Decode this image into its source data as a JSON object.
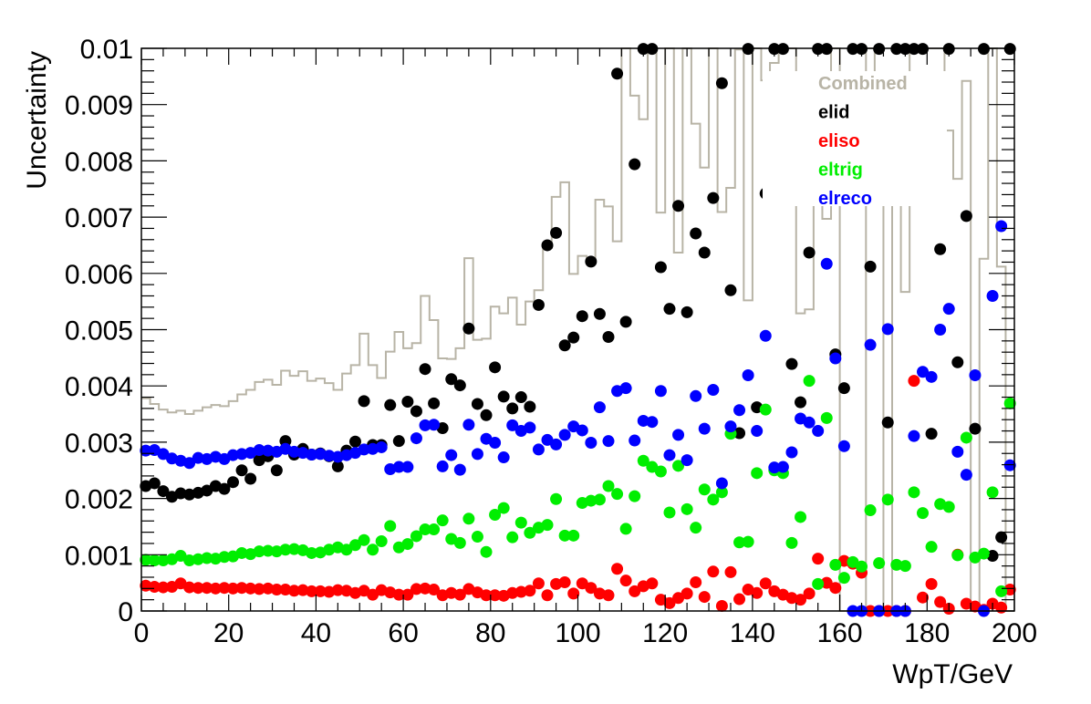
{
  "chart_data": {
    "type": "scatter",
    "xlabel": "WpT/GeV",
    "ylabel": "Uncertainty",
    "xlim": [
      0,
      200
    ],
    "ylim": [
      0,
      0.01
    ],
    "x_ticks": [
      "0",
      "20",
      "40",
      "60",
      "80",
      "100",
      "120",
      "140",
      "160",
      "180",
      "200"
    ],
    "y_ticks": [
      "0",
      "0.001",
      "0.002",
      "0.003",
      "0.004",
      "0.005",
      "0.006",
      "0.007",
      "0.008",
      "0.009",
      "0.01"
    ],
    "legend_position": "top-right",
    "x": [
      1,
      3,
      5,
      7,
      9,
      11,
      13,
      15,
      17,
      19,
      21,
      23,
      25,
      27,
      29,
      31,
      33,
      35,
      37,
      39,
      41,
      43,
      45,
      47,
      49,
      51,
      53,
      55,
      57,
      59,
      61,
      63,
      65,
      67,
      69,
      71,
      73,
      75,
      77,
      79,
      81,
      83,
      85,
      87,
      89,
      91,
      93,
      95,
      97,
      99,
      101,
      103,
      105,
      107,
      109,
      111,
      113,
      115,
      117,
      119,
      121,
      123,
      125,
      127,
      129,
      131,
      133,
      135,
      137,
      139,
      141,
      143,
      145,
      147,
      149,
      151,
      153,
      155,
      157,
      159,
      161,
      163,
      165,
      167,
      169,
      171,
      173,
      175,
      177,
      179,
      181,
      183,
      185,
      187,
      189,
      191,
      193,
      195,
      197,
      199
    ],
    "series": [
      {
        "name": "Combined",
        "color": "#b8b4a6",
        "style": "step",
        "values": [
          0.00378,
          0.00368,
          0.00358,
          0.00353,
          0.00356,
          0.0035,
          0.00356,
          0.00362,
          0.00366,
          0.00364,
          0.00373,
          0.00385,
          0.00393,
          0.00407,
          0.00411,
          0.00402,
          0.00427,
          0.00418,
          0.00426,
          0.00409,
          0.00413,
          0.00405,
          0.00393,
          0.00422,
          0.00437,
          0.00493,
          0.00437,
          0.00414,
          0.00461,
          0.00496,
          0.00467,
          0.00476,
          0.0056,
          0.00517,
          0.00449,
          0.00448,
          0.00467,
          0.00627,
          0.00482,
          0.00484,
          0.00541,
          0.00529,
          0.00557,
          0.00509,
          0.0055,
          0.0057,
          0.00645,
          0.00736,
          0.00762,
          0.00599,
          0.00631,
          0.00621,
          0.00731,
          0.00719,
          0.00657,
          0.01,
          0.00916,
          0.00874,
          0.01,
          0.00708,
          0.01,
          0.00637,
          0.01,
          0.00866,
          0.00788,
          0.01,
          0.00709,
          0.00752,
          0.00998,
          0.00552,
          0.01,
          0.00943,
          0.00974,
          0.00994,
          0.01,
          0.00529,
          0.00536,
          0.00767,
          0.00697,
          0.01,
          0.0,
          0.0,
          0.0,
          0.01,
          0.00729,
          0.0,
          0.00836,
          0.00567,
          0.01,
          0.01,
          0.01,
          0.01,
          0.00854,
          0.00768,
          0.00942,
          0.0,
          0.00626,
          0.01,
          0.00612,
          0.0
        ]
      },
      {
        "name": "elid",
        "color": "#000000",
        "style": "markers",
        "values": [
          0.00222,
          0.00227,
          0.00213,
          0.00203,
          0.00209,
          0.00207,
          0.0021,
          0.00214,
          0.00222,
          0.00217,
          0.00229,
          0.0025,
          0.00235,
          0.00268,
          0.00275,
          0.0025,
          0.00302,
          0.00278,
          0.00288,
          0.00278,
          0.0028,
          0.00275,
          0.00257,
          0.00285,
          0.00301,
          0.00373,
          0.00295,
          0.00295,
          0.00366,
          0.00302,
          0.00372,
          0.00355,
          0.0043,
          0.00369,
          0.00325,
          0.00412,
          0.00401,
          0.00502,
          0.00368,
          0.00348,
          0.00433,
          0.00381,
          0.0036,
          0.0038,
          0.00363,
          0.00544,
          0.0065,
          0.00672,
          0.00472,
          0.00486,
          0.00524,
          0.00621,
          0.00528,
          0.00487,
          0.00955,
          0.00514,
          0.00794,
          0.00999,
          0.00999,
          0.00611,
          0.00537,
          0.0072,
          0.00531,
          0.00671,
          0.00637,
          0.00734,
          0.00938,
          0.0057,
          0.00316,
          0.00999,
          0.00362,
          0.00742,
          0.00999,
          0.00999,
          0.00439,
          0.00371,
          0.00637,
          0.00999,
          0.00999,
          0.00456,
          0.00396,
          0.00999,
          0.00999,
          0.00612,
          0.00999,
          0.00335,
          0.00999,
          0.00999,
          0.00999,
          0.00999,
          0.00315,
          0.00643,
          0.00999,
          0.00442,
          0.00702,
          0.00324,
          0.00999,
          0.00098,
          0.00131,
          0.00999
        ]
      },
      {
        "name": "eliso",
        "color": "#ff0000",
        "style": "markers",
        "values": [
          0.00045,
          0.00043,
          0.00042,
          0.00043,
          0.00049,
          0.00042,
          0.00041,
          0.00041,
          0.0004,
          0.00041,
          0.0004,
          0.00041,
          0.0004,
          0.00039,
          0.0004,
          0.00038,
          0.00038,
          0.00036,
          0.00037,
          0.00035,
          0.00035,
          0.00034,
          0.00037,
          0.00036,
          0.00032,
          0.00036,
          0.00029,
          0.00037,
          0.00033,
          0.00029,
          0.00029,
          0.00039,
          0.0004,
          0.00038,
          0.00028,
          0.00032,
          0.00029,
          0.00039,
          0.00033,
          0.00028,
          0.00028,
          0.00027,
          0.00032,
          0.00034,
          0.00036,
          0.00049,
          0.00028,
          0.00048,
          0.00051,
          0.00031,
          0.00049,
          0.00041,
          0.00031,
          0.00028,
          0.00075,
          0.00054,
          0.00035,
          0.00044,
          0.00049,
          0.0002,
          0.00014,
          0.00023,
          0.00031,
          0.00051,
          0.00025,
          0.0007,
          9e-05,
          0.00069,
          0.00021,
          0.00038,
          0.00032,
          0.00049,
          0.00035,
          0.00029,
          0.00023,
          0.0002,
          0.00031,
          0.00093,
          0.0005,
          0.00041,
          0.00089,
          0.00084,
          0.00068,
          0.0,
          0.0,
          0.0,
          0.0,
          0.0,
          0.00409,
          0.00024,
          0.00048,
          0.00016,
          4e-05,
          0.001,
          0.00013,
          8e-05,
          2e-05,
          0.00013,
          6e-05,
          0.00038
        ]
      },
      {
        "name": "eltrig",
        "color": "#00ee00",
        "style": "markers",
        "values": [
          0.00091,
          0.0009,
          0.0009,
          0.00092,
          0.00098,
          0.0009,
          0.00092,
          0.00094,
          0.00093,
          0.00096,
          0.00097,
          0.00103,
          0.00101,
          0.00106,
          0.00107,
          0.00106,
          0.00109,
          0.0011,
          0.00108,
          0.00103,
          0.00104,
          0.00109,
          0.00113,
          0.00109,
          0.00117,
          0.00126,
          0.00109,
          0.00124,
          0.00151,
          0.00113,
          0.00119,
          0.00133,
          0.00145,
          0.00145,
          0.00161,
          0.00128,
          0.00121,
          0.00164,
          0.00132,
          0.00105,
          0.00171,
          0.00183,
          0.00131,
          0.00157,
          0.00139,
          0.00148,
          0.00153,
          0.00199,
          0.00134,
          0.00134,
          0.00192,
          0.00196,
          0.00198,
          0.00222,
          0.00208,
          0.00146,
          0.00204,
          0.00267,
          0.00256,
          0.00248,
          0.00175,
          0.00258,
          0.00181,
          0.00148,
          0.00216,
          0.00198,
          0.00211,
          0.00315,
          0.00122,
          0.00123,
          0.00245,
          0.00358,
          0.0025,
          0.00245,
          0.00121,
          0.00167,
          0.00409,
          0.00048,
          0.00343,
          0.00082,
          0.00059,
          0.00087,
          0.00079,
          0.00179,
          0.00085,
          0.00198,
          0.00082,
          0.0008,
          0.00211,
          0.00174,
          0.00114,
          0.0019,
          0.00185,
          0.00099,
          0.00308,
          0.00095,
          0.00102,
          0.00211,
          0.00035,
          0.00369
        ]
      },
      {
        "name": "elreco",
        "color": "#0000ff",
        "style": "markers",
        "values": [
          0.00285,
          0.00286,
          0.00279,
          0.00271,
          0.00267,
          0.00263,
          0.00272,
          0.0027,
          0.00274,
          0.0027,
          0.00277,
          0.00279,
          0.00281,
          0.00286,
          0.00285,
          0.00283,
          0.00288,
          0.00283,
          0.00281,
          0.00278,
          0.00279,
          0.00276,
          0.00274,
          0.00277,
          0.00281,
          0.00287,
          0.00288,
          0.00291,
          0.00252,
          0.00256,
          0.00256,
          0.00307,
          0.0033,
          0.00331,
          0.00257,
          0.00277,
          0.00251,
          0.00331,
          0.00279,
          0.00306,
          0.00299,
          0.00273,
          0.0033,
          0.0032,
          0.00326,
          0.00287,
          0.00304,
          0.00296,
          0.00313,
          0.00328,
          0.00321,
          0.00299,
          0.00362,
          0.00302,
          0.00391,
          0.00396,
          0.00303,
          0.00338,
          0.00336,
          0.00391,
          0.00277,
          0.00313,
          0.00268,
          0.00382,
          0.00324,
          0.00393,
          0.00227,
          0.00328,
          0.00357,
          0.00419,
          0.0032,
          0.00489,
          0.00255,
          0.00256,
          0.00282,
          0.00342,
          0.00335,
          0.0032,
          0.00617,
          0.00449,
          0.00293,
          0.0,
          0.0,
          0.00473,
          0.0,
          0.00501,
          0.0,
          0.0,
          0.00311,
          0.00425,
          0.00416,
          0.005,
          0.00537,
          0.00283,
          0.00242,
          0.00419,
          0.0,
          0.0056,
          0.00684,
          0.00259
        ]
      }
    ]
  }
}
